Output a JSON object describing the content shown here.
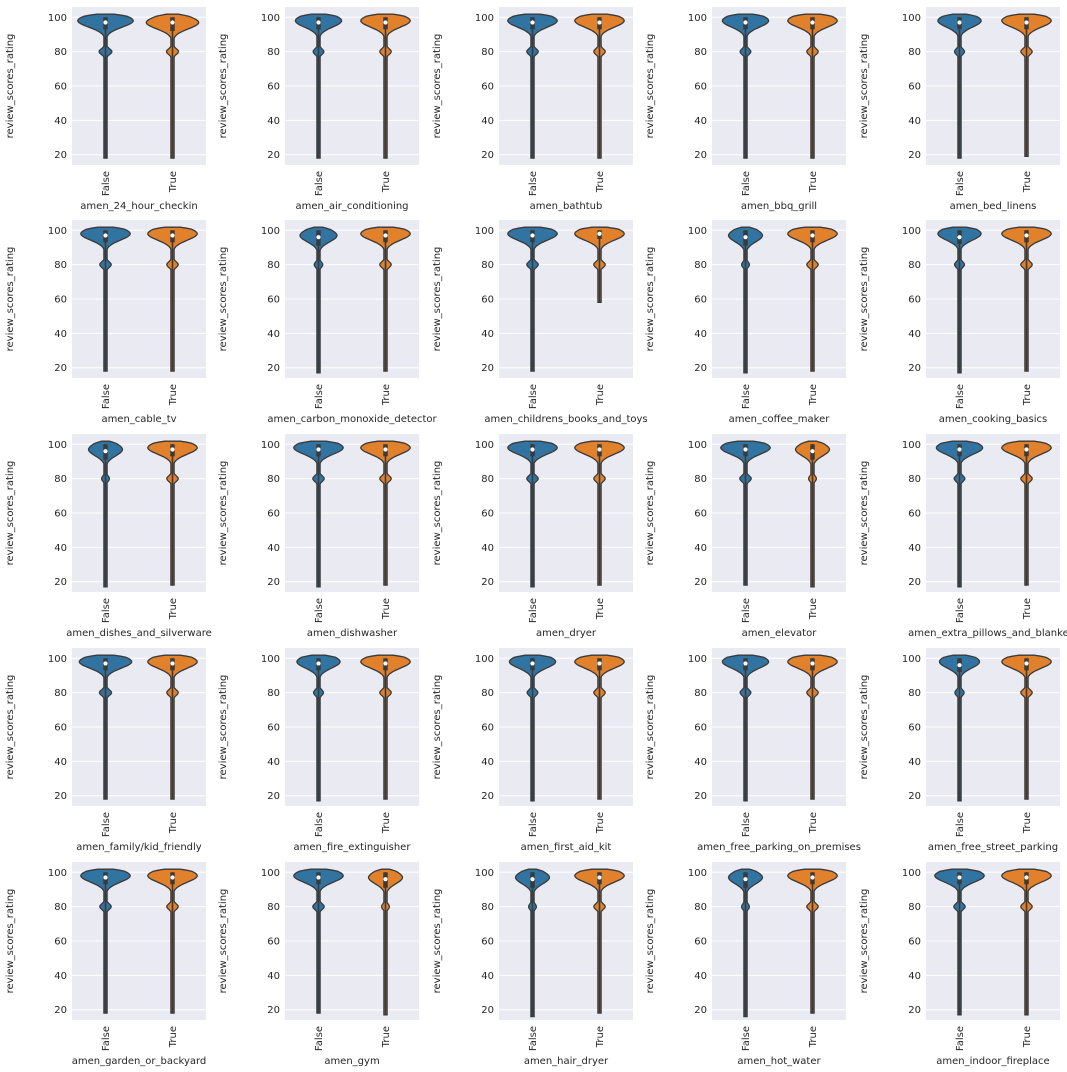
{
  "chart_data": {
    "type": "violin",
    "grid": true,
    "shared_ylabel": "review_scores_rating",
    "categories": [
      "False",
      "True"
    ],
    "ylim": [
      14,
      106
    ],
    "yticks": [
      20,
      40,
      60,
      80,
      100
    ],
    "colors": {
      "False": "#3274a1",
      "True": "#e1812c",
      "background": "#eaeaf2",
      "grid": "#ffffff",
      "outline": "#3a3a3a"
    },
    "panels": [
      {
        "xlabel": "amen_24_hour_checkin",
        "min": [
          18,
          18
        ],
        "median": [
          97,
          97
        ],
        "q1": [
          93,
          92
        ],
        "q3": [
          100,
          100
        ],
        "peak": [
          98,
          97
        ],
        "spread": [
          0.9,
          0.85
        ]
      },
      {
        "xlabel": "amen_air_conditioning",
        "min": [
          18,
          18
        ],
        "median": [
          97,
          97
        ],
        "q1": [
          93,
          93
        ],
        "q3": [
          100,
          100
        ],
        "peak": [
          98,
          98
        ],
        "spread": [
          0.75,
          0.8
        ]
      },
      {
        "xlabel": "amen_bathtub",
        "min": [
          18,
          18
        ],
        "median": [
          97,
          97
        ],
        "q1": [
          93,
          93
        ],
        "q3": [
          100,
          100
        ],
        "peak": [
          98,
          98
        ],
        "spread": [
          0.8,
          0.8
        ]
      },
      {
        "xlabel": "amen_bbq_grill",
        "min": [
          18,
          18
        ],
        "median": [
          97,
          97
        ],
        "q1": [
          93,
          93
        ],
        "q3": [
          100,
          100
        ],
        "peak": [
          98,
          98
        ],
        "spread": [
          0.75,
          0.8
        ]
      },
      {
        "xlabel": "amen_bed_linens",
        "min": [
          18,
          19
        ],
        "median": [
          97,
          97
        ],
        "q1": [
          93,
          93
        ],
        "q3": [
          100,
          100
        ],
        "peak": [
          98,
          98
        ],
        "spread": [
          0.7,
          0.8
        ]
      },
      {
        "xlabel": "amen_cable_tv",
        "min": [
          18,
          18
        ],
        "median": [
          97,
          97
        ],
        "q1": [
          93,
          93
        ],
        "q3": [
          100,
          100
        ],
        "peak": [
          98,
          98
        ],
        "spread": [
          0.8,
          0.8
        ]
      },
      {
        "xlabel": "amen_carbon_monoxide_detector",
        "min": [
          17,
          18
        ],
        "median": [
          96,
          97
        ],
        "q1": [
          91,
          93
        ],
        "q3": [
          100,
          100
        ],
        "peak": [
          97,
          98
        ],
        "spread": [
          0.6,
          0.8
        ]
      },
      {
        "xlabel": "amen_childrens_books_and_toys",
        "min": [
          18,
          58
        ],
        "median": [
          97,
          98
        ],
        "q1": [
          93,
          95
        ],
        "q3": [
          100,
          100
        ],
        "peak": [
          98,
          98
        ],
        "spread": [
          0.8,
          0.8
        ]
      },
      {
        "xlabel": "amen_coffee_maker",
        "min": [
          17,
          18
        ],
        "median": [
          96,
          97
        ],
        "q1": [
          91,
          93
        ],
        "q3": [
          100,
          100
        ],
        "peak": [
          97,
          98
        ],
        "spread": [
          0.55,
          0.8
        ]
      },
      {
        "xlabel": "amen_cooking_basics",
        "min": [
          17,
          18
        ],
        "median": [
          96,
          97
        ],
        "q1": [
          92,
          93
        ],
        "q3": [
          100,
          100
        ],
        "peak": [
          98,
          98
        ],
        "spread": [
          0.7,
          0.8
        ]
      },
      {
        "xlabel": "amen_dishes_and_silverware",
        "min": [
          17,
          18
        ],
        "median": [
          96,
          97
        ],
        "q1": [
          91,
          93
        ],
        "q3": [
          100,
          100
        ],
        "peak": [
          97,
          98
        ],
        "spread": [
          0.55,
          0.8
        ]
      },
      {
        "xlabel": "amen_dishwasher",
        "min": [
          17,
          18
        ],
        "median": [
          97,
          97
        ],
        "q1": [
          93,
          93
        ],
        "q3": [
          100,
          100
        ],
        "peak": [
          98,
          98
        ],
        "spread": [
          0.8,
          0.8
        ]
      },
      {
        "xlabel": "amen_dryer",
        "min": [
          17,
          18
        ],
        "median": [
          97,
          97
        ],
        "q1": [
          93,
          93
        ],
        "q3": [
          100,
          100
        ],
        "peak": [
          98,
          98
        ],
        "spread": [
          0.8,
          0.8
        ]
      },
      {
        "xlabel": "amen_elevator",
        "min": [
          18,
          17
        ],
        "median": [
          97,
          96
        ],
        "q1": [
          93,
          91
        ],
        "q3": [
          100,
          100
        ],
        "peak": [
          98,
          97
        ],
        "spread": [
          0.8,
          0.55
        ]
      },
      {
        "xlabel": "amen_extra_pillows_and_blankets",
        "min": [
          17,
          18
        ],
        "median": [
          97,
          97
        ],
        "q1": [
          93,
          93
        ],
        "q3": [
          100,
          100
        ],
        "peak": [
          98,
          98
        ],
        "spread": [
          0.75,
          0.8
        ]
      },
      {
        "xlabel": "amen_family/kid_friendly",
        "min": [
          18,
          18
        ],
        "median": [
          97,
          97
        ],
        "q1": [
          93,
          93
        ],
        "q3": [
          100,
          100
        ],
        "peak": [
          98,
          98
        ],
        "spread": [
          0.85,
          0.8
        ]
      },
      {
        "xlabel": "amen_fire_extinguisher",
        "min": [
          17,
          18
        ],
        "median": [
          97,
          97
        ],
        "q1": [
          93,
          93
        ],
        "q3": [
          100,
          100
        ],
        "peak": [
          98,
          98
        ],
        "spread": [
          0.7,
          0.8
        ]
      },
      {
        "xlabel": "amen_first_aid_kit",
        "min": [
          17,
          18
        ],
        "median": [
          97,
          97
        ],
        "q1": [
          93,
          93
        ],
        "q3": [
          100,
          100
        ],
        "peak": [
          98,
          98
        ],
        "spread": [
          0.75,
          0.8
        ]
      },
      {
        "xlabel": "amen_free_parking_on_premises",
        "min": [
          17,
          18
        ],
        "median": [
          97,
          97
        ],
        "q1": [
          93,
          93
        ],
        "q3": [
          100,
          100
        ],
        "peak": [
          98,
          98
        ],
        "spread": [
          0.75,
          0.8
        ]
      },
      {
        "xlabel": "amen_free_street_parking",
        "min": [
          17,
          18
        ],
        "median": [
          96,
          97
        ],
        "q1": [
          92,
          93
        ],
        "q3": [
          100,
          100
        ],
        "peak": [
          98,
          98
        ],
        "spread": [
          0.65,
          0.8
        ]
      },
      {
        "xlabel": "amen_garden_or_backyard",
        "min": [
          18,
          18
        ],
        "median": [
          97,
          97
        ],
        "q1": [
          93,
          93
        ],
        "q3": [
          100,
          100
        ],
        "peak": [
          98,
          98
        ],
        "spread": [
          0.8,
          0.8
        ]
      },
      {
        "xlabel": "amen_gym",
        "min": [
          18,
          17
        ],
        "median": [
          97,
          96
        ],
        "q1": [
          93,
          91
        ],
        "q3": [
          100,
          100
        ],
        "peak": [
          98,
          97
        ],
        "spread": [
          0.8,
          0.55
        ]
      },
      {
        "xlabel": "amen_hair_dryer",
        "min": [
          16,
          18
        ],
        "median": [
          96,
          97
        ],
        "q1": [
          91,
          93
        ],
        "q3": [
          100,
          100
        ],
        "peak": [
          97,
          98
        ],
        "spread": [
          0.55,
          0.8
        ]
      },
      {
        "xlabel": "amen_hot_water",
        "min": [
          16,
          18
        ],
        "median": [
          96,
          97
        ],
        "q1": [
          91,
          93
        ],
        "q3": [
          100,
          100
        ],
        "peak": [
          97,
          98
        ],
        "spread": [
          0.55,
          0.8
        ]
      },
      {
        "xlabel": "amen_indoor_fireplace",
        "min": [
          17,
          17
        ],
        "median": [
          97,
          97
        ],
        "q1": [
          93,
          93
        ],
        "q3": [
          100,
          100
        ],
        "peak": [
          98,
          98
        ],
        "spread": [
          0.8,
          0.8
        ]
      }
    ]
  }
}
